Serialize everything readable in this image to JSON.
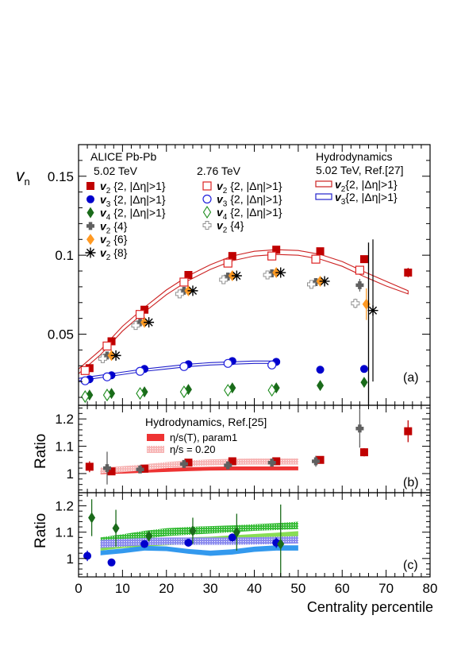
{
  "chart_data": [
    {
      "type": "scatter",
      "panel": "a",
      "panel_label": "(a)",
      "ylabel": "v_n",
      "ylabel_main": "v",
      "ylabel_sub": "n",
      "xlim": [
        0,
        80
      ],
      "ylim": [
        0.005,
        0.17
      ],
      "yticks": [
        "0.05",
        "0.1",
        "0.15"
      ],
      "ytick_values": [
        0.05,
        0.1,
        0.15
      ],
      "header_left": "ALICE Pb-Pb",
      "header_502": "5.02 TeV",
      "header_276": "2.76 TeV",
      "header_hydro": "Hydrodynamics",
      "header_hydro_ref": "5.02 TeV, Ref.[27]",
      "series": [
        {
          "name": "v2{2, |Δη|>1}",
          "legend_main": "v",
          "legend_sub": "2",
          "legend_rest": "{2, |Δη|>1}",
          "energy": "5.02 TeV",
          "marker": "square-filled",
          "color": "#c00000",
          "x": [
            2.5,
            7.5,
            15,
            25,
            35,
            45,
            55,
            65,
            75
          ],
          "y": [
            0.0285,
            0.0455,
            0.0655,
            0.0875,
            0.0995,
            0.1035,
            0.1025,
            0.0975,
            0.089
          ],
          "yerr": [
            0.001,
            0.001,
            0.001,
            0.001,
            0.001,
            0.001,
            0.001,
            0.002,
            0.003
          ]
        },
        {
          "name": "v3{2, |Δη|>1}",
          "legend_main": "v",
          "legend_sub": "3",
          "legend_rest": "{2, |Δη|>1}",
          "energy": "5.02 TeV",
          "marker": "circle-filled",
          "color": "#0000cc",
          "x": [
            2.5,
            7.5,
            15,
            25,
            35,
            45,
            55,
            65
          ],
          "y": [
            0.0215,
            0.024,
            0.028,
            0.031,
            0.033,
            0.0325,
            0.0275,
            0.028
          ],
          "yerr": [
            0.0005,
            0.0005,
            0.0005,
            0.0005,
            0.0005,
            0.0007,
            0.001,
            0.0015
          ]
        },
        {
          "name": "v4{2, |Δη|>1}",
          "legend_main": "v",
          "legend_sub": "4",
          "legend_rest": "{2, |Δη|>1}",
          "energy": "5.02 TeV",
          "marker": "diamond-filled",
          "color": "#1a6b1a",
          "x": [
            2.5,
            7.5,
            15,
            25,
            35,
            45,
            55,
            65
          ],
          "y": [
            0.0115,
            0.0125,
            0.0135,
            0.015,
            0.016,
            0.016,
            0.0175,
            0.0195
          ],
          "yerr": [
            0.0005,
            0.0005,
            0.0005,
            0.0005,
            0.0005,
            0.0005,
            0.001,
            0.002
          ]
        },
        {
          "name": "v2{4}",
          "legend_main": "v",
          "legend_sub": "2",
          "legend_rest": "{4}",
          "energy": "5.02 TeV",
          "marker": "cross-filled",
          "color": "#606060",
          "x": [
            6.5,
            14,
            24,
            34,
            44,
            54,
            64
          ],
          "y": [
            0.0365,
            0.0575,
            0.0775,
            0.0865,
            0.0885,
            0.083,
            0.081
          ],
          "yerr": [
            0.0005,
            0.0005,
            0.0005,
            0.0005,
            0.0006,
            0.0008,
            0.004
          ]
        },
        {
          "name": "v2{6}",
          "legend_main": "v",
          "legend_sub": "2",
          "legend_rest": "{6}",
          "energy": "5.02 TeV",
          "marker": "diamond-orange",
          "color": "#ff9922",
          "x": [
            7.5,
            15,
            25,
            35,
            45,
            55,
            65.5
          ],
          "y": [
            0.0365,
            0.0575,
            0.0775,
            0.087,
            0.089,
            0.0835,
            0.069
          ],
          "yerr": [
            0.0005,
            0.0005,
            0.0005,
            0.0005,
            0.0008,
            0.0015,
            0.01
          ]
        },
        {
          "name": "v2{8}",
          "legend_main": "v",
          "legend_sub": "2",
          "legend_rest": "{8}",
          "energy": "5.02 TeV",
          "marker": "star",
          "color": "#000000",
          "x": [
            8.5,
            16,
            26,
            36,
            46,
            56,
            67
          ],
          "y": [
            0.0365,
            0.0575,
            0.0775,
            0.087,
            0.089,
            0.0835,
            0.065
          ],
          "yerr": [
            0.0005,
            0.0005,
            0.0005,
            0.0005,
            0.001,
            0.002,
            0.045
          ]
        },
        {
          "name": "v2{2, |Δη|>1} 2.76 TeV",
          "legend_main": "v",
          "legend_sub": "2",
          "legend_rest": "{2, |Δη|>1}",
          "energy": "2.76 TeV",
          "marker": "square-open",
          "color": "#dd2222",
          "x": [
            1.5,
            6.5,
            14,
            24,
            34,
            44,
            54,
            64
          ],
          "y": [
            0.027,
            0.0425,
            0.0625,
            0.083,
            0.095,
            0.0995,
            0.0975,
            0.0905
          ],
          "yerr": [
            0.0005,
            0.0005,
            0.0005,
            0.0005,
            0.0005,
            0.0005,
            0.0008,
            0.0015
          ]
        },
        {
          "name": "v3{2, |Δη|>1} 2.76 TeV",
          "legend_main": "v",
          "legend_sub": "3",
          "legend_rest": "{2, |Δη|>1}",
          "energy": "2.76 TeV",
          "marker": "circle-open",
          "color": "#2222dd",
          "x": [
            1.5,
            6.5,
            14,
            24,
            34,
            44
          ],
          "y": [
            0.0205,
            0.023,
            0.0265,
            0.0295,
            0.0315,
            0.0305
          ],
          "yerr": [
            0.0005,
            0.0005,
            0.0005,
            0.0005,
            0.0005,
            0.0007
          ]
        },
        {
          "name": "v4{2, |Δη|>1} 2.76 TeV",
          "legend_main": "v",
          "legend_sub": "4",
          "legend_rest": "{2, |Δη|>1}",
          "energy": "2.76 TeV",
          "marker": "diamond-open",
          "color": "#1a8a1a",
          "x": [
            1.5,
            6.5,
            14,
            24,
            34,
            44
          ],
          "y": [
            0.0105,
            0.0115,
            0.0125,
            0.0135,
            0.0145,
            0.0145
          ],
          "yerr": [
            0.0005,
            0.0005,
            0.0005,
            0.0005,
            0.0005,
            0.0005
          ]
        },
        {
          "name": "v2{4} 2.76 TeV",
          "legend_main": "v",
          "legend_sub": "2",
          "legend_rest": "{4}",
          "energy": "2.76 TeV",
          "marker": "cross-open",
          "color": "#909090",
          "x": [
            5.5,
            13,
            23,
            33,
            43,
            53,
            63
          ],
          "y": [
            0.0345,
            0.0555,
            0.0755,
            0.0845,
            0.0875,
            0.0815,
            0.0695
          ],
          "yerr": [
            0.0005,
            0.0005,
            0.0005,
            0.0005,
            0.0005,
            0.001,
            0.003
          ]
        }
      ],
      "hydro": [
        {
          "name": "v2{2, |Δη|>1} Hydrodynamics",
          "legend_main": "v",
          "legend_sub": "2",
          "legend_rest": "{2, |Δη|>1}",
          "color": "#cc2222",
          "x": [
            0,
            5,
            10,
            15,
            20,
            25,
            30,
            35,
            40,
            45,
            50,
            55,
            60,
            65,
            70,
            75
          ],
          "lo": [
            0.025,
            0.037,
            0.052,
            0.064,
            0.075,
            0.084,
            0.091,
            0.0965,
            0.0995,
            0.1005,
            0.1,
            0.0975,
            0.093,
            0.0865,
            0.0805,
            0.0755
          ],
          "hi": [
            0.028,
            0.04,
            0.055,
            0.067,
            0.078,
            0.087,
            0.094,
            0.0995,
            0.1025,
            0.1035,
            0.103,
            0.1005,
            0.096,
            0.0895,
            0.0835,
            0.0775
          ]
        },
        {
          "name": "v3{2, |Δη|>1} Hydrodynamics",
          "legend_main": "v",
          "legend_sub": "3",
          "legend_rest": "{2, |Δη|>1}",
          "color": "#2222cc",
          "x": [
            0,
            5,
            10,
            15,
            20,
            25,
            30,
            35,
            40,
            45
          ],
          "lo": [
            0.0205,
            0.0225,
            0.0245,
            0.0265,
            0.028,
            0.0295,
            0.0305,
            0.031,
            0.0315,
            0.0315
          ],
          "hi": [
            0.022,
            0.024,
            0.026,
            0.028,
            0.0295,
            0.031,
            0.032,
            0.0325,
            0.033,
            0.033
          ]
        }
      ]
    },
    {
      "type": "scatter",
      "panel": "b",
      "panel_label": "(b)",
      "ylabel": "Ratio",
      "xlim": [
        0,
        80
      ],
      "ylim": [
        0.93,
        1.25
      ],
      "yticks": [
        "1",
        "1.1",
        "1.2"
      ],
      "ytick_values": [
        1.0,
        1.1,
        1.2
      ],
      "legend_title": "Hydrodynamics, Ref.[25]",
      "bands": [
        {
          "name": "η/s(T), param1",
          "color": "#ee3333",
          "style": "solid",
          "x": [
            5,
            10,
            15,
            20,
            25,
            30,
            35,
            40,
            45,
            50
          ],
          "lo": [
            0.998,
            1.0,
            1.003,
            1.006,
            1.009,
            1.011,
            1.012,
            1.012,
            1.012,
            1.012
          ],
          "hi": [
            1.012,
            1.014,
            1.017,
            1.02,
            1.023,
            1.025,
            1.026,
            1.026,
            1.026,
            1.026
          ]
        },
        {
          "name": "η/s = 0.20",
          "color": "#f5a0a0",
          "style": "dotted",
          "x": [
            5,
            10,
            15,
            20,
            25,
            30,
            35,
            40,
            45,
            50
          ],
          "lo": [
            1.0,
            1.005,
            1.012,
            1.02,
            1.026,
            1.03,
            1.032,
            1.033,
            1.033,
            1.033
          ],
          "hi": [
            1.022,
            1.027,
            1.034,
            1.042,
            1.048,
            1.052,
            1.054,
            1.055,
            1.055,
            1.055
          ]
        }
      ],
      "points": [
        {
          "name": "v2{2, |Δη|>1} ratio",
          "marker": "square-filled",
          "color": "#c00000",
          "x": [
            2.5,
            7.5,
            15,
            25,
            35,
            45,
            55,
            65,
            75
          ],
          "y": [
            1.025,
            1.008,
            1.018,
            1.04,
            1.045,
            1.045,
            1.05,
            1.078,
            1.155
          ],
          "yerr": [
            0.02,
            0.01,
            0.01,
            0.01,
            0.01,
            0.01,
            0.01,
            0.015,
            0.04
          ]
        },
        {
          "name": "v2{4} ratio",
          "marker": "cross-filled",
          "color": "#606060",
          "x": [
            6.5,
            14,
            24,
            34,
            44,
            54,
            64
          ],
          "y": [
            1.02,
            1.015,
            1.035,
            1.03,
            1.04,
            1.045,
            1.165
          ],
          "yerr": [
            0.06,
            0.01,
            0.01,
            0.01,
            0.015,
            0.02,
            0.07
          ]
        }
      ]
    },
    {
      "type": "scatter",
      "panel": "c",
      "panel_label": "(c)",
      "ylabel": "Ratio",
      "xlabel": "Centrality percentile",
      "xlim": [
        0,
        80
      ],
      "xticks": [
        "0",
        "10",
        "20",
        "30",
        "40",
        "50",
        "60",
        "70",
        "80"
      ],
      "xtick_values": [
        0,
        10,
        20,
        30,
        40,
        50,
        60,
        70,
        80
      ],
      "ylim": [
        0.93,
        1.25
      ],
      "yticks": [
        "1",
        "1.1",
        "1.2"
      ],
      "ytick_values": [
        1.0,
        1.1,
        1.2
      ],
      "bands": [
        {
          "name": "v4 band 1",
          "color": "#33bb33",
          "style": "dotted",
          "x": [
            5,
            10,
            15,
            20,
            25,
            30,
            35,
            40,
            45,
            50
          ],
          "lo": [
            1.045,
            1.06,
            1.075,
            1.085,
            1.09,
            1.095,
            1.1,
            1.105,
            1.108,
            1.112
          ],
          "hi": [
            1.08,
            1.092,
            1.105,
            1.115,
            1.12,
            1.123,
            1.126,
            1.13,
            1.134,
            1.14
          ]
        },
        {
          "name": "v4 band 2",
          "color": "#88dd55",
          "style": "solid",
          "x": [
            5,
            10,
            15,
            20,
            25,
            30,
            35,
            40,
            45,
            50
          ],
          "lo": [
            1.03,
            1.04,
            1.045,
            1.05,
            1.055,
            1.058,
            1.062,
            1.068,
            1.075,
            1.08
          ],
          "hi": [
            1.055,
            1.065,
            1.072,
            1.076,
            1.08,
            1.083,
            1.088,
            1.093,
            1.098,
            1.104
          ]
        },
        {
          "name": "v3 band 1",
          "color": "#8888ee",
          "style": "dotted",
          "x": [
            5,
            10,
            15,
            20,
            25,
            30,
            35,
            40,
            45,
            50
          ],
          "lo": [
            1.04,
            1.045,
            1.05,
            1.052,
            1.052,
            1.052,
            1.052,
            1.053,
            1.055,
            1.057
          ],
          "hi": [
            1.07,
            1.075,
            1.078,
            1.08,
            1.08,
            1.08,
            1.08,
            1.081,
            1.083,
            1.085
          ]
        },
        {
          "name": "v3 band 2",
          "color": "#3399ee",
          "style": "solid",
          "x": [
            5,
            10,
            15,
            20,
            25,
            30,
            35,
            40,
            45,
            50
          ],
          "lo": [
            1.012,
            1.02,
            1.03,
            1.028,
            1.018,
            1.01,
            1.015,
            1.025,
            1.03,
            1.03
          ],
          "hi": [
            1.03,
            1.038,
            1.048,
            1.046,
            1.036,
            1.03,
            1.035,
            1.045,
            1.05,
            1.05
          ]
        }
      ],
      "points": [
        {
          "name": "v3 ratio",
          "marker": "circle-filled",
          "color": "#0000cc",
          "x": [
            2,
            7.5,
            15,
            25,
            35,
            45
          ],
          "y": [
            1.01,
            0.985,
            1.055,
            1.06,
            1.08,
            1.06
          ],
          "yerr": [
            0.02,
            0.01,
            0.01,
            0.01,
            0.015,
            0.02
          ]
        },
        {
          "name": "v4 ratio",
          "marker": "diamond-filled",
          "color": "#1a6b1a",
          "x": [
            3,
            8.5,
            16,
            26,
            36,
            46
          ],
          "y": [
            1.155,
            1.115,
            1.085,
            1.105,
            1.1,
            1.055
          ],
          "yerr": [
            0.07,
            0.07,
            0.02,
            0.05,
            0.07,
            0.15
          ]
        }
      ]
    }
  ]
}
